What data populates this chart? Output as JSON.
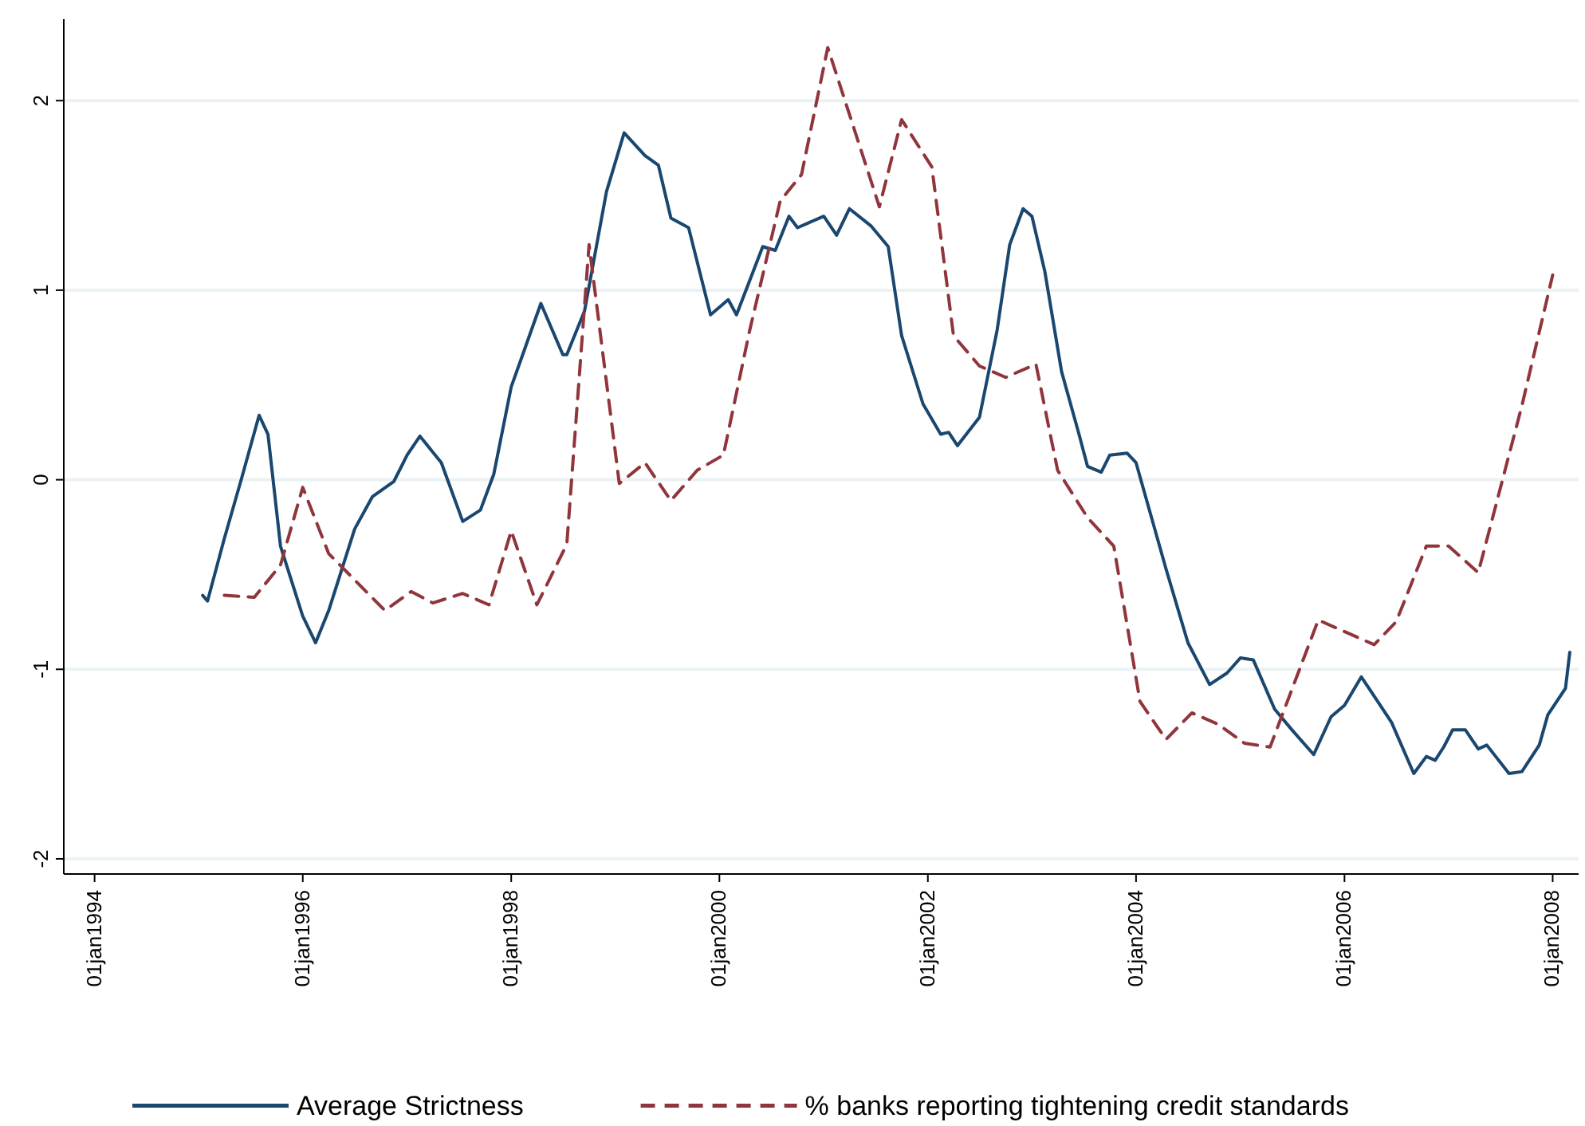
{
  "chart_data": {
    "type": "line",
    "xlim": [
      "1993-09-15",
      "2008-04-01"
    ],
    "ylim": [
      -2.08,
      2.43
    ],
    "xticks": [
      {
        "value": "1994-01-01",
        "label": "01jan1994"
      },
      {
        "value": "1996-01-01",
        "label": "01jan1996"
      },
      {
        "value": "1998-01-01",
        "label": "01jan1998"
      },
      {
        "value": "2000-01-01",
        "label": "01jan2000"
      },
      {
        "value": "2002-01-01",
        "label": "01jan2002"
      },
      {
        "value": "2004-01-01",
        "label": "01jan2004"
      },
      {
        "value": "2006-01-01",
        "label": "01jan2006"
      },
      {
        "value": "2008-01-01",
        "label": "01jan2008"
      }
    ],
    "yticks": [
      -2,
      -1,
      0,
      1,
      2
    ],
    "grid": "y",
    "legend": "bottom",
    "marker": "none",
    "series": [
      {
        "name": "Average Strictness",
        "color": "#1a476f",
        "line_style": "solid",
        "x": [
          "1995-01-15",
          "1995-02-01",
          "1995-04-01",
          "1995-06-01",
          "1995-08-01",
          "1995-09-01",
          "1995-10-15",
          "1996-01-01",
          "1996-02-15",
          "1996-04-01",
          "1996-07-01",
          "1996-09-01",
          "1996-11-15",
          "1997-01-01",
          "1997-02-15",
          "1997-05-01",
          "1997-07-15",
          "1997-09-15",
          "1997-11-01",
          "1998-01-01",
          "1998-02-15",
          "1998-04-15",
          "1998-07-01",
          "1998-07-15",
          "1998-09-15",
          "1998-12-01",
          "1999-02-01",
          "1999-04-15",
          "1999-06-01",
          "1999-07-15",
          "1999-09-15",
          "1999-12-01",
          "2000-02-01",
          "2000-03-01",
          "2000-06-01",
          "2000-07-15",
          "2000-09-01",
          "2000-10-01",
          "2001-01-01",
          "2001-02-15",
          "2001-04-01",
          "2001-06-15",
          "2001-08-15",
          "2001-10-01",
          "2001-12-15",
          "2002-02-15",
          "2002-03-15",
          "2002-04-15",
          "2002-07-01",
          "2002-09-01",
          "2002-10-15",
          "2002-12-01",
          "2003-01-01",
          "2003-02-15",
          "2003-04-15",
          "2003-06-15",
          "2003-07-15",
          "2003-09-01",
          "2003-10-01",
          "2003-12-01",
          "2004-01-01",
          "2004-04-15",
          "2004-07-01",
          "2004-09-15",
          "2004-11-15",
          "2005-01-01",
          "2005-02-15",
          "2005-05-01",
          "2005-07-01",
          "2005-09-15",
          "2005-11-15",
          "2006-01-01",
          "2006-03-01",
          "2006-04-01",
          "2006-06-15",
          "2006-09-01",
          "2006-10-15",
          "2006-11-15",
          "2006-12-15",
          "2007-01-15",
          "2007-03-01",
          "2007-04-15",
          "2007-05-15",
          "2007-08-01",
          "2007-09-15",
          "2007-11-15",
          "2007-12-15",
          "2008-02-15",
          "2008-03-01"
        ],
        "values": [
          -0.61,
          -0.64,
          -0.31,
          0.01,
          0.34,
          0.24,
          -0.35,
          -0.72,
          -0.86,
          -0.69,
          -0.26,
          -0.09,
          -0.01,
          0.13,
          0.23,
          0.09,
          -0.22,
          -0.16,
          0.03,
          0.49,
          0.68,
          0.93,
          0.66,
          0.66,
          0.89,
          1.52,
          1.83,
          1.71,
          1.66,
          1.38,
          1.33,
          0.87,
          0.95,
          0.87,
          1.23,
          1.21,
          1.39,
          1.33,
          1.39,
          1.29,
          1.43,
          1.34,
          1.23,
          0.76,
          0.4,
          0.24,
          0.25,
          0.18,
          0.33,
          0.79,
          1.24,
          1.43,
          1.39,
          1.1,
          0.57,
          0.24,
          0.07,
          0.04,
          0.13,
          0.14,
          0.09,
          -0.47,
          -0.86,
          -1.08,
          -1.02,
          -0.94,
          -0.95,
          -1.21,
          -1.32,
          -1.45,
          -1.25,
          -1.19,
          -1.04,
          -1.11,
          -1.28,
          -1.55,
          -1.46,
          -1.48,
          -1.41,
          -1.32,
          -1.32,
          -1.42,
          -1.4,
          -1.55,
          -1.54,
          -1.4,
          -1.24,
          -1.1,
          -0.91
        ]
      },
      {
        "name": "% banks reporting tightening credit standards",
        "color": "#90353b",
        "line_style": "dashed",
        "x": [
          "1995-04-01",
          "1995-07-15",
          "1995-10-15",
          "1996-01-01",
          "1996-04-01",
          "1996-10-15",
          "1997-01-15",
          "1997-04-01",
          "1997-07-15",
          "1997-10-15",
          "1998-01-01",
          "1998-04-01",
          "1998-07-15",
          "1998-10-01",
          "1999-01-15",
          "1999-04-15",
          "1999-07-15",
          "1999-10-15",
          "2000-01-15",
          "2000-04-15",
          "2000-08-01",
          "2000-10-15",
          "2001-01-15",
          "2001-07-15",
          "2001-10-01",
          "2002-01-15",
          "2002-04-01",
          "2002-07-01",
          "2002-10-01",
          "2003-01-15",
          "2003-04-01",
          "2003-07-15",
          "2003-10-15",
          "2004-01-15",
          "2004-04-15",
          "2004-07-15",
          "2004-10-15",
          "2005-01-15",
          "2005-04-15",
          "2005-10-01",
          "2006-04-15",
          "2006-07-01",
          "2006-10-15",
          "2007-01-01",
          "2007-04-15",
          "2007-09-15",
          "2008-01-01"
        ],
        "values": [
          -0.61,
          -0.62,
          -0.45,
          -0.04,
          -0.39,
          -0.69,
          -0.59,
          -0.65,
          -0.6,
          -0.66,
          -0.27,
          -0.66,
          -0.34,
          1.24,
          -0.02,
          0.09,
          -0.11,
          0.05,
          0.13,
          0.78,
          1.47,
          1.61,
          2.28,
          1.44,
          1.9,
          1.65,
          0.76,
          0.6,
          0.54,
          0.61,
          0.05,
          -0.2,
          -0.35,
          -1.17,
          -1.37,
          -1.23,
          -1.29,
          -1.39,
          -1.41,
          -0.74,
          -0.87,
          -0.75,
          -0.35,
          -0.35,
          -0.49,
          0.39,
          1.08
        ]
      }
    ]
  }
}
